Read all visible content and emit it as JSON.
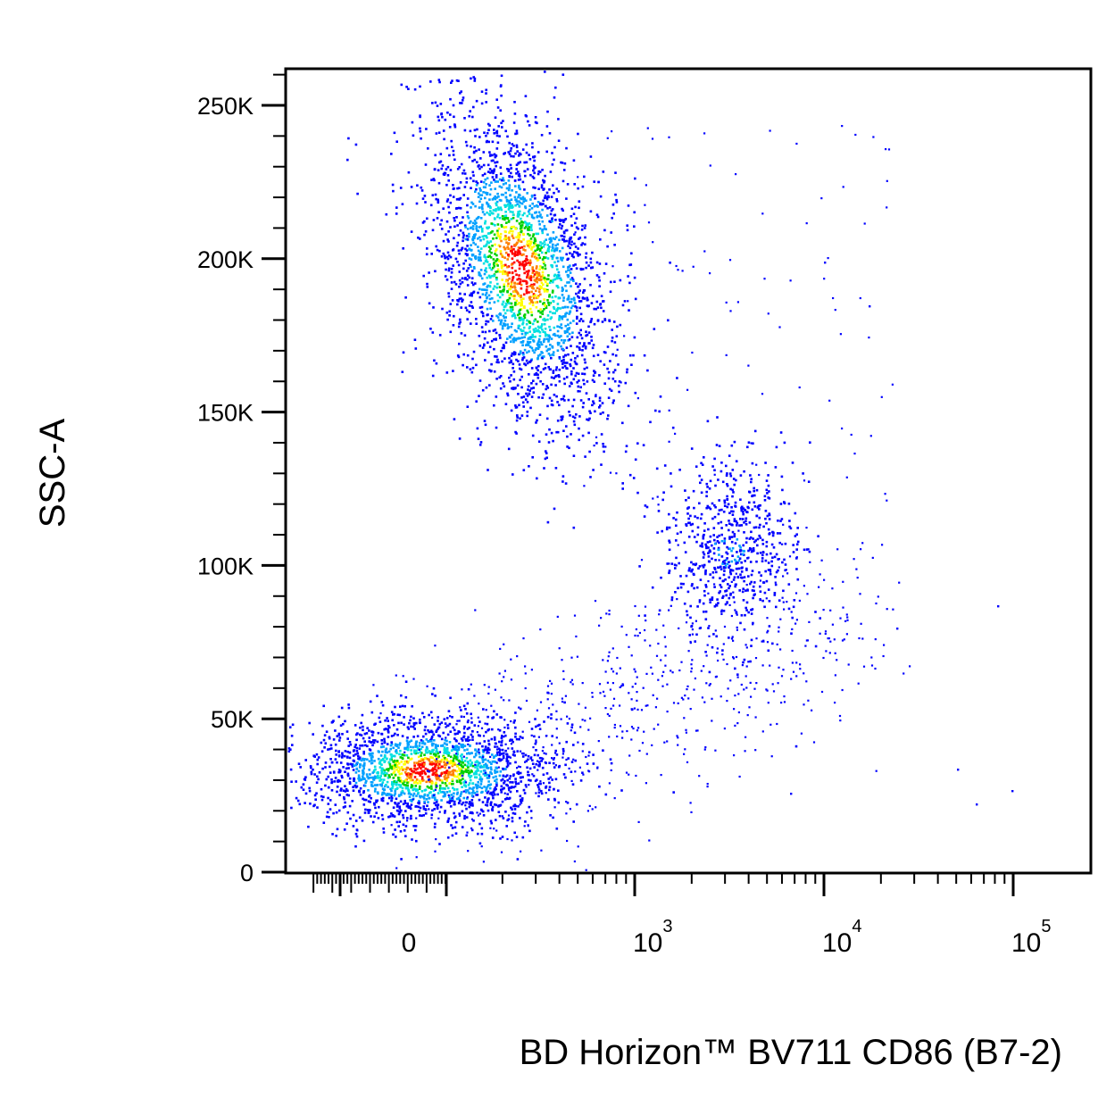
{
  "chart_data": {
    "type": "scatter",
    "subtype": "flow cytometry density dot plot",
    "xlabel": "BD Horizon™ BV711 CD86 (B7-2)",
    "ylabel": "SSC-A",
    "x_scale": "biexponential (log above 10^2)",
    "ylim": [
      0,
      262144
    ],
    "y_ticks": [
      {
        "value": 0,
        "label": "0"
      },
      {
        "value": 50000,
        "label": "50K"
      },
      {
        "value": 100000,
        "label": "100K"
      },
      {
        "value": 150000,
        "label": "150K"
      },
      {
        "value": 200000,
        "label": "200K"
      },
      {
        "value": 250000,
        "label": "250K"
      }
    ],
    "x_ticks": [
      {
        "value": 0,
        "base": "0",
        "exp": ""
      },
      {
        "value": 1000,
        "base": "10",
        "exp": "3"
      },
      {
        "value": 10000,
        "base": "10",
        "exp": "4"
      },
      {
        "value": 100000,
        "base": "10",
        "exp": "5"
      }
    ],
    "grid": false,
    "legend": "none",
    "color_scale": [
      "#0000ff",
      "#00a0ff",
      "#00e0e0",
      "#00d000",
      "#ffff00",
      "#ff8000",
      "#ff0000"
    ],
    "populations": [
      {
        "x_center": 400,
        "y_center": 185000,
        "x_spread": "0 to 2000",
        "y_range": [
          120000,
          262000
        ],
        "density": "high"
      },
      {
        "x_center": 3000,
        "y_center": 105000,
        "x_spread": "1500 to 8000",
        "y_range": [
          75000,
          135000
        ],
        "density": "medium"
      },
      {
        "x_center": 30,
        "y_center": 33000,
        "x_spread": "-150 to 600",
        "y_range": [
          15000,
          60000
        ],
        "density": "high"
      }
    ]
  }
}
